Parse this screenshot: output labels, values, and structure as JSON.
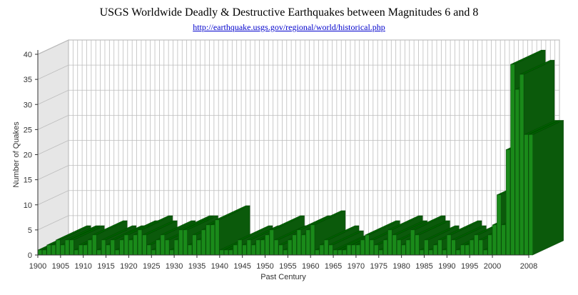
{
  "chart_data": {
    "type": "bar",
    "title": "USGS Worldwide Deadly & Destructive Earthquakes between Magnitudes 6 and 8",
    "subtitle": "http://earthquake.usgs.gov/regional/world/historical.php",
    "xlabel": "Past Century",
    "ylabel": "Number of Quakes",
    "ylim": [
      0,
      40
    ],
    "yticks": [
      0,
      5,
      10,
      15,
      20,
      25,
      30,
      35,
      40
    ],
    "xtick_labels": [
      "1900",
      "1905",
      "1910",
      "1915",
      "1920",
      "1925",
      "1930",
      "1935",
      "1940",
      "1945",
      "1950",
      "1955",
      "1960",
      "1965",
      "1970",
      "1975",
      "1980",
      "1985",
      "1990",
      "1995",
      "2000",
      "2008"
    ],
    "grid": true,
    "style": "3d",
    "colors": {
      "bar_front": "#1a8a1a",
      "bar_side": "#0b5a0b",
      "bar_top": "#006000",
      "wall": "#e6e6e6",
      "grid": "#bdbdbd"
    },
    "categories": [
      "1900",
      "1901",
      "1902",
      "1903",
      "1904",
      "1905",
      "1906",
      "1907",
      "1908",
      "1909",
      "1910",
      "1911",
      "1912",
      "1913",
      "1914",
      "1915",
      "1916",
      "1917",
      "1918",
      "1919",
      "1920",
      "1921",
      "1922",
      "1923",
      "1924",
      "1925",
      "1926",
      "1927",
      "1928",
      "1929",
      "1930",
      "1931",
      "1932",
      "1933",
      "1934",
      "1935",
      "1936",
      "1937",
      "1938",
      "1939",
      "1940",
      "1941",
      "1942",
      "1943",
      "1944",
      "1945",
      "1946",
      "1947",
      "1948",
      "1949",
      "1950",
      "1951",
      "1952",
      "1953",
      "1954",
      "1955",
      "1956",
      "1957",
      "1958",
      "1959",
      "1960",
      "1961",
      "1962",
      "1963",
      "1964",
      "1965",
      "1966",
      "1967",
      "1968",
      "1969",
      "1970",
      "1971",
      "1972",
      "1973",
      "1974",
      "1975",
      "1976",
      "1977",
      "1978",
      "1979",
      "1980",
      "1981",
      "1982",
      "1983",
      "1984",
      "1985",
      "1986",
      "1987",
      "1988",
      "1989",
      "1990",
      "1991",
      "1992",
      "1993",
      "1994",
      "1995",
      "1996",
      "1997",
      "1998",
      "1999",
      "2000",
      "2001",
      "2002",
      "2003",
      "2004",
      "2005",
      "2006",
      "2007",
      "2008"
    ],
    "values": [
      1,
      1,
      2,
      2,
      3,
      2,
      3,
      3,
      1,
      2,
      2,
      3,
      4,
      1,
      3,
      2,
      3,
      1,
      3,
      4,
      3,
      4,
      5,
      4,
      2,
      1,
      3,
      4,
      3,
      1,
      3,
      5,
      5,
      2,
      4,
      3,
      5,
      6,
      6,
      7,
      1,
      1,
      1,
      2,
      3,
      2,
      3,
      2,
      3,
      3,
      4,
      5,
      3,
      2,
      1,
      3,
      4,
      5,
      4,
      5,
      6,
      1,
      2,
      3,
      2,
      1,
      1,
      1,
      2,
      2,
      2,
      3,
      4,
      3,
      2,
      1,
      3,
      5,
      4,
      3,
      2,
      3,
      5,
      4,
      1,
      3,
      1,
      2,
      3,
      1,
      4,
      3,
      1,
      2,
      2,
      3,
      4,
      3,
      1,
      4,
      6,
      12,
      6,
      21,
      38,
      33,
      36,
      24,
      24
    ]
  }
}
